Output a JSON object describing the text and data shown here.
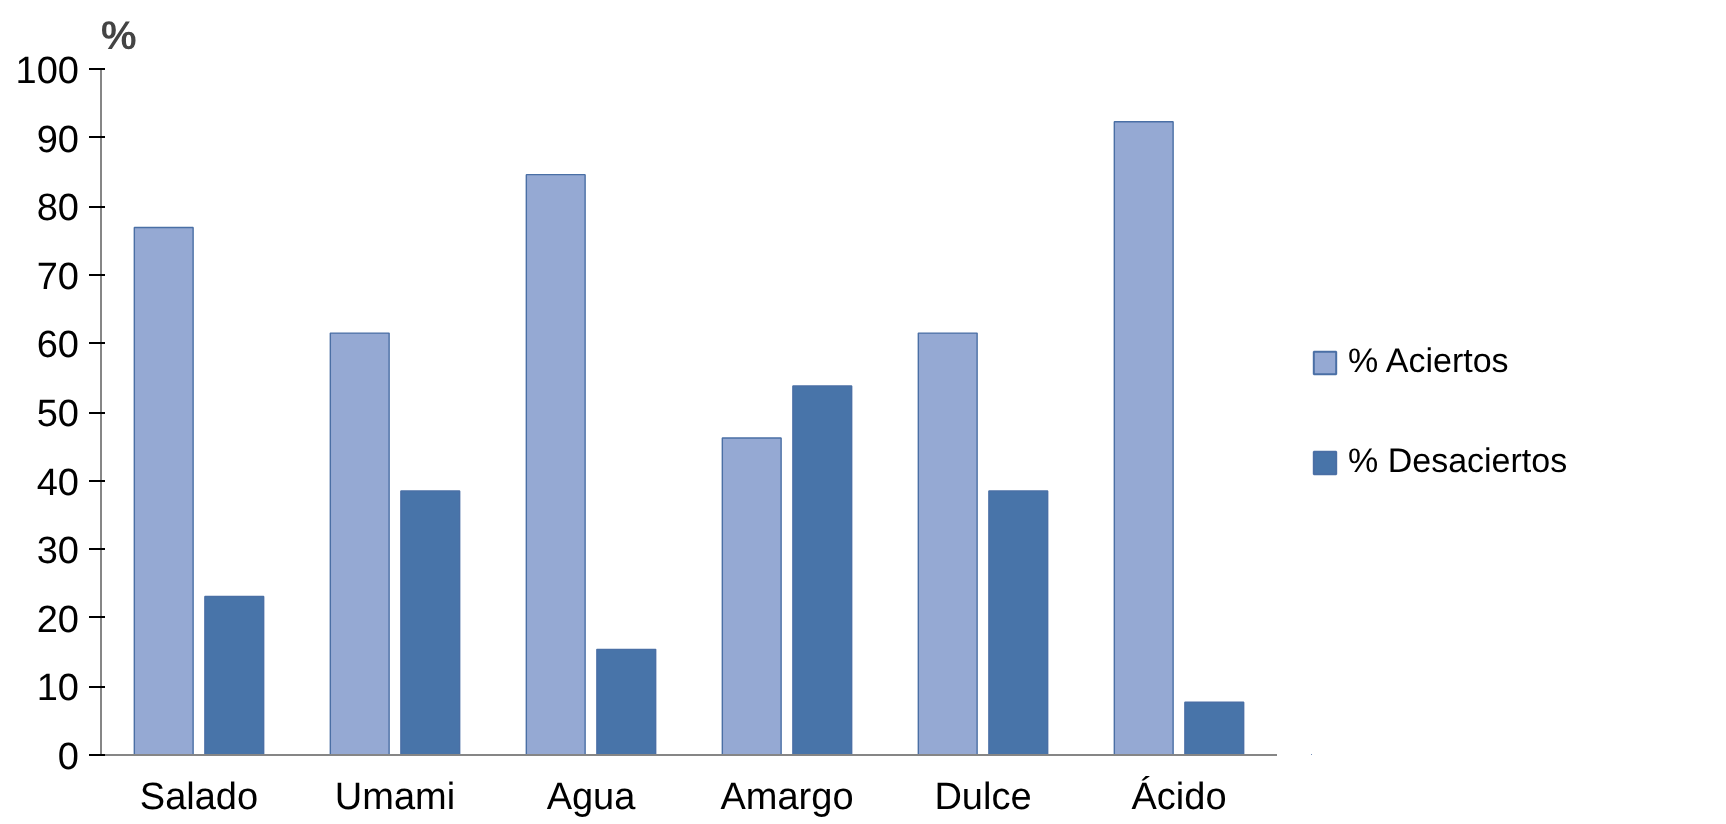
{
  "chart_data": {
    "type": "bar",
    "ylabel": "%",
    "categories": [
      "Salado",
      "Umami",
      "Agua",
      "Amargo",
      "Dulce",
      "Ácido"
    ],
    "series": [
      {
        "name": "% Aciertos",
        "color": "#95a9d3",
        "values": [
          76.9,
          61.5,
          84.6,
          46.2,
          61.5,
          92.3
        ]
      },
      {
        "name": "% Desaciertos",
        "color": "#4874a9",
        "values": [
          23.1,
          38.5,
          15.4,
          53.8,
          38.5,
          7.7
        ]
      }
    ],
    "ylim": [
      0,
      100
    ],
    "yticks": [
      0,
      10,
      20,
      30,
      40,
      50,
      60,
      70,
      80,
      90,
      100
    ],
    "grid": false,
    "legend": "right"
  }
}
